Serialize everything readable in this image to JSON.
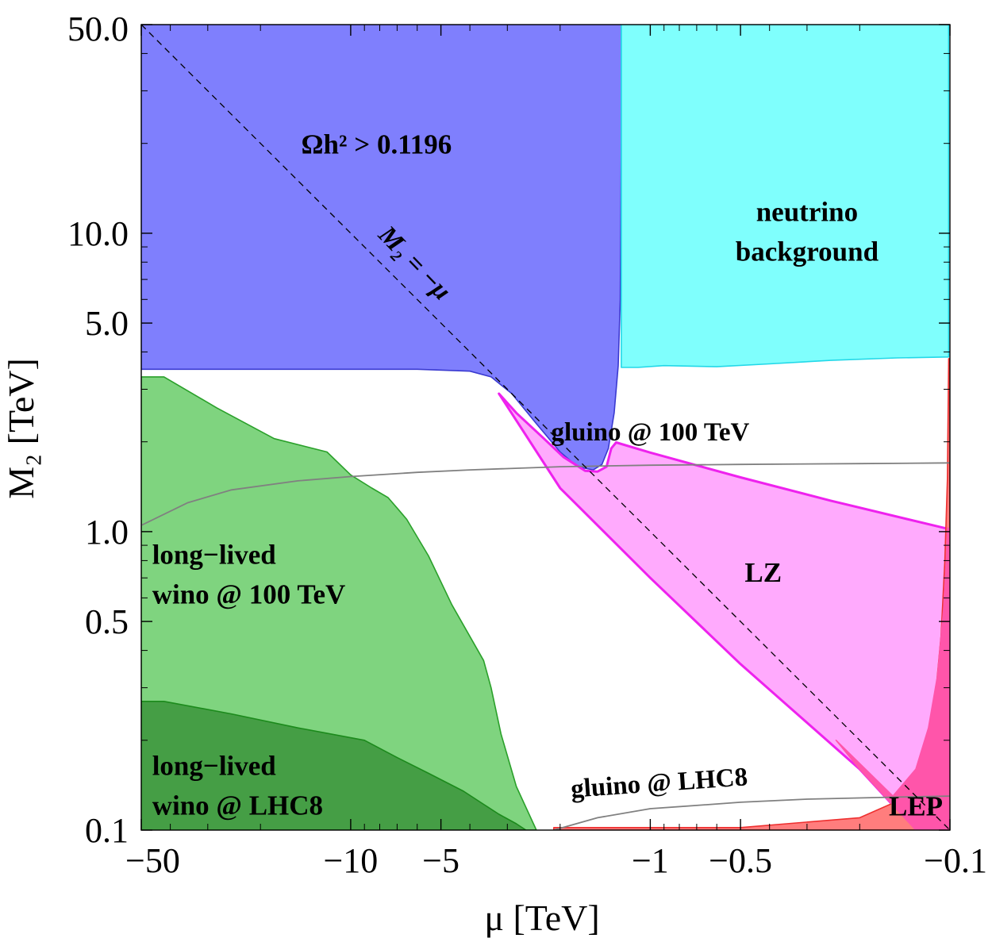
{
  "chart_data": {
    "type": "area",
    "title": "",
    "xlabel": "μ [TeV]",
    "ylabel": "M₂ [TeV]",
    "xscale": "log (|μ|, negative axis)",
    "yscale": "log",
    "xlim": [
      -50,
      -0.1
    ],
    "ylim": [
      0.1,
      50.0
    ],
    "xticks": [
      {
        "value": -50,
        "label": "−50"
      },
      {
        "value": -10,
        "label": "−10"
      },
      {
        "value": -5,
        "label": "−5"
      },
      {
        "value": -1,
        "label": "−1"
      },
      {
        "value": -0.5,
        "label": "−0.5"
      },
      {
        "value": -0.1,
        "label": "−0.1"
      }
    ],
    "yticks": [
      {
        "value": 50.0,
        "label": "50.0"
      },
      {
        "value": 10.0,
        "label": "10.0"
      },
      {
        "value": 5.0,
        "label": "5.0"
      },
      {
        "value": 1.0,
        "label": "1.0"
      },
      {
        "value": 0.5,
        "label": "0.5"
      },
      {
        "value": 0.1,
        "label": "0.1"
      }
    ],
    "regions": [
      {
        "name": "relic-overabundance",
        "label_lines": [
          "Ωh² > 0.1196"
        ],
        "label_pos": [
          -8.2,
          18.5
        ],
        "fill": "#7f7ffd",
        "stroke": "#3a3ad0",
        "points": [
          [
            -50,
            50
          ],
          [
            -1.25,
            50
          ],
          [
            -1.25,
            20
          ],
          [
            -1.26,
            6
          ],
          [
            -1.28,
            3.6
          ],
          [
            -1.32,
            2.5
          ],
          [
            -1.38,
            1.9
          ],
          [
            -1.45,
            1.68
          ],
          [
            -1.55,
            1.61
          ],
          [
            -1.75,
            1.65
          ],
          [
            -2.0,
            1.85
          ],
          [
            -2.4,
            2.3
          ],
          [
            -2.9,
            2.9
          ],
          [
            -3.4,
            3.3
          ],
          [
            -4.0,
            3.45
          ],
          [
            -6.0,
            3.5
          ],
          [
            -50,
            3.5
          ]
        ]
      },
      {
        "name": "neutrino-background",
        "label_lines": [
          "neutrino",
          "background"
        ],
        "label_pos": [
          -0.3,
          11.0
        ],
        "fill": "#7ffffd",
        "stroke": "#22d8e8",
        "points": [
          [
            -1.25,
            50
          ],
          [
            -0.101,
            50
          ],
          [
            -0.101,
            3.85
          ],
          [
            -0.15,
            3.82
          ],
          [
            -0.25,
            3.75
          ],
          [
            -0.4,
            3.65
          ],
          [
            -0.6,
            3.57
          ],
          [
            -0.9,
            3.6
          ],
          [
            -1.1,
            3.55
          ],
          [
            -1.25,
            3.55
          ],
          [
            -1.25,
            6
          ],
          [
            -1.25,
            20
          ]
        ]
      },
      {
        "name": "lz-reach",
        "label_lines": [
          "LZ"
        ],
        "label_pos": [
          -0.42,
          0.68
        ],
        "fill": "#ffaafd",
        "stroke": "#ee22ee",
        "points": [
          [
            -3.2,
            2.9
          ],
          [
            -2.8,
            2.5
          ],
          [
            -2.3,
            2.08
          ],
          [
            -1.95,
            1.78
          ],
          [
            -1.65,
            1.6
          ],
          [
            -1.5,
            1.59
          ],
          [
            -1.4,
            1.65
          ],
          [
            -1.35,
            1.9
          ],
          [
            -1.3,
            1.99
          ],
          [
            -1.0,
            1.84
          ],
          [
            -0.5,
            1.52
          ],
          [
            -0.25,
            1.27
          ],
          [
            -0.105,
            1.03
          ],
          [
            -0.1,
            1.02
          ],
          [
            -0.1,
            0.1
          ],
          [
            -0.13,
            0.1
          ],
          [
            -0.2,
            0.16
          ],
          [
            -0.5,
            0.36
          ],
          [
            -1.0,
            0.7
          ],
          [
            -2.0,
            1.4
          ],
          [
            -3.2,
            2.9
          ]
        ]
      },
      {
        "name": "lep-exclusion",
        "label_lines": [
          "LEP"
        ],
        "label_pos": [
          -0.13,
          0.112
        ],
        "fill": "#ff7d7d",
        "stroke": "#ee3030",
        "points": [
          [
            -2.1,
            0.102
          ],
          [
            -0.5,
            0.102
          ],
          [
            -0.2,
            0.11
          ],
          [
            -0.15,
            0.125
          ],
          [
            -0.125,
            0.17
          ],
          [
            -0.113,
            0.25
          ],
          [
            -0.107,
            0.45
          ],
          [
            -0.104,
            0.8
          ],
          [
            -0.102,
            1.5
          ],
          [
            -0.101,
            3.8
          ],
          [
            -0.1,
            3.8
          ],
          [
            -0.1,
            0.1
          ],
          [
            -2.1,
            0.1
          ]
        ]
      },
      {
        "name": "lz-lep-overlap",
        "label_lines": [],
        "fill": "#ff55aa",
        "stroke": "#ff55aa",
        "points": [
          [
            -0.1,
            0.1
          ],
          [
            -0.13,
            0.1
          ],
          [
            -0.2,
            0.16
          ],
          [
            -0.24,
            0.2
          ],
          [
            -0.155,
            0.13
          ],
          [
            -0.13,
            0.16
          ],
          [
            -0.118,
            0.22
          ],
          [
            -0.11,
            0.33
          ],
          [
            -0.105,
            0.55
          ],
          [
            -0.103,
            0.8
          ],
          [
            -0.102,
            1.03
          ],
          [
            -0.1,
            1.02
          ]
        ]
      },
      {
        "name": "long-lived-wino-100tev",
        "label_lines": [
          "long−lived",
          "wino @ 100 TeV"
        ],
        "label_pos": [
          -46,
          0.78
        ],
        "fill": "#7fd47f",
        "stroke": "#2aa02a",
        "points": [
          [
            -50,
            3.3
          ],
          [
            -42,
            3.3
          ],
          [
            -28,
            2.6
          ],
          [
            -18,
            2.05
          ],
          [
            -12,
            1.85
          ],
          [
            -10,
            1.55
          ],
          [
            -8.5,
            1.4
          ],
          [
            -7.5,
            1.3
          ],
          [
            -7.0,
            1.2
          ],
          [
            -6.5,
            1.1
          ],
          [
            -5.5,
            0.83
          ],
          [
            -4.6,
            0.57
          ],
          [
            -3.6,
            0.37
          ],
          [
            -3.4,
            0.3
          ],
          [
            -3.15,
            0.21
          ],
          [
            -2.8,
            0.14
          ],
          [
            -2.4,
            0.1
          ],
          [
            -50,
            0.1
          ]
        ]
      },
      {
        "name": "long-lived-wino-lhc8",
        "label_lines": [
          "long−lived",
          "wino @ LHC8"
        ],
        "label_pos": [
          -46,
          0.153
        ],
        "fill": "#459e45",
        "stroke": "#1c8a1c",
        "points": [
          [
            -50,
            0.27
          ],
          [
            -42,
            0.27
          ],
          [
            -25,
            0.245
          ],
          [
            -15,
            0.22
          ],
          [
            -9,
            0.2
          ],
          [
            -7,
            0.175
          ],
          [
            -5.5,
            0.155
          ],
          [
            -4.2,
            0.135
          ],
          [
            -3.6,
            0.122
          ],
          [
            -3.2,
            0.113
          ],
          [
            -2.8,
            0.105
          ],
          [
            -2.6,
            0.1
          ],
          [
            -50,
            0.1
          ]
        ]
      }
    ],
    "lines": [
      {
        "name": "gluino-100tev",
        "label": "gluino @ 100 TeV",
        "label_pos": [
          -1.0,
          2.02
        ],
        "label_rotate": 0,
        "color": "#808080",
        "points": [
          [
            -50,
            1.05
          ],
          [
            -35,
            1.25
          ],
          [
            -25,
            1.38
          ],
          [
            -15,
            1.48
          ],
          [
            -10,
            1.53
          ],
          [
            -6,
            1.58
          ],
          [
            -4,
            1.61
          ],
          [
            -2,
            1.65
          ],
          [
            -1,
            1.67
          ],
          [
            -0.5,
            1.68
          ],
          [
            -0.2,
            1.69
          ],
          [
            -0.1,
            1.7
          ]
        ]
      },
      {
        "name": "gluino-lhc8",
        "label": "gluino @ LHC8",
        "label_pos": [
          -0.93,
          0.135
        ],
        "label_rotate": -4,
        "color": "#808080",
        "points": [
          [
            -2.1,
            0.1
          ],
          [
            -1.5,
            0.11
          ],
          [
            -1.0,
            0.118
          ],
          [
            -0.7,
            0.121
          ],
          [
            -0.5,
            0.124
          ],
          [
            -0.3,
            0.127
          ],
          [
            -0.15,
            0.129
          ],
          [
            -0.1,
            0.13
          ]
        ]
      },
      {
        "name": "m2-equals-minus-mu",
        "label": "M₂ = −μ",
        "label_pos": [
          -6.4,
          7.6
        ],
        "label_rotate": 46,
        "color": "#000000",
        "dashed": true,
        "points": [
          [
            -50,
            50
          ],
          [
            -0.1,
            0.1
          ]
        ]
      }
    ]
  }
}
